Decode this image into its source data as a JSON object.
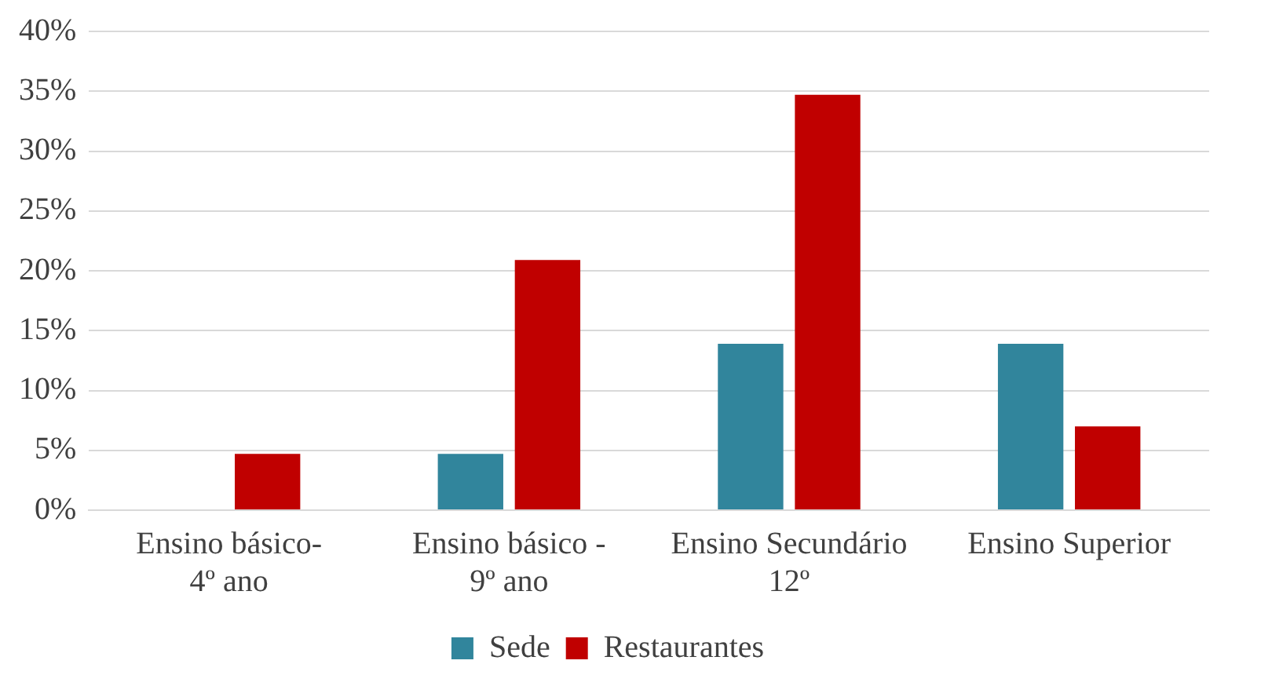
{
  "chart_data": {
    "type": "bar",
    "categories": [
      "Ensino básico-\n4º ano",
      "Ensino básico -\n9º ano",
      "Ensino Secundário\n12º",
      "Ensino Superior"
    ],
    "series": [
      {
        "name": "Sede",
        "color": "#31859c",
        "values": [
          0,
          4.7,
          13.9,
          13.9
        ]
      },
      {
        "name": "Restaurantes",
        "color": "#c00000",
        "values": [
          4.7,
          20.9,
          34.7,
          7.0
        ]
      }
    ],
    "ylim": [
      0,
      40
    ],
    "yticks": [
      {
        "value": 0,
        "label": "0%"
      },
      {
        "value": 5,
        "label": "5%"
      },
      {
        "value": 10,
        "label": "10%"
      },
      {
        "value": 15,
        "label": "15%"
      },
      {
        "value": 20,
        "label": "20%"
      },
      {
        "value": 25,
        "label": "25%"
      },
      {
        "value": 30,
        "label": "30%"
      },
      {
        "value": 35,
        "label": "35%"
      },
      {
        "value": 40,
        "label": "40%"
      }
    ],
    "grid": "y",
    "legend": "bottom"
  }
}
